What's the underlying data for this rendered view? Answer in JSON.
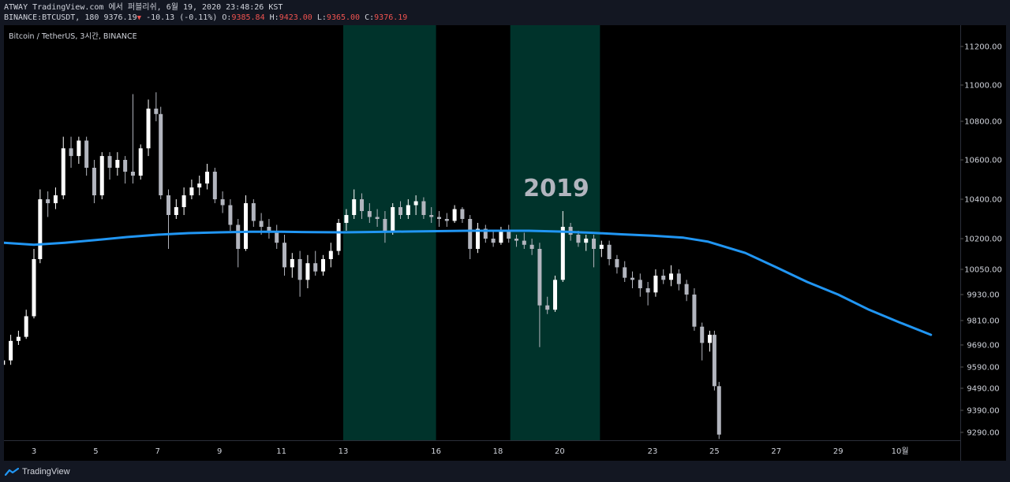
{
  "header": {
    "line1": "ATWAY TradingView.com 에서 퍼블리쉬, 6월 19, 2020 23:48:26 KST",
    "symbol": "BINANCE:BTCUSDT, 180",
    "last": "9376.19",
    "change_arrow": "▼",
    "change": "-10.13 (-0.11%)",
    "o_label": "O:",
    "o_value": "9385.84",
    "h_label": "H:",
    "h_value": "9423.00",
    "l_label": "L:",
    "l_value": "9365.00",
    "c_label": "C:",
    "c_value": "9376.19"
  },
  "footer": {
    "brand": "TradingView"
  },
  "colors": {
    "background": "#000000",
    "frame": "#131722",
    "candle_up": "#ffffff",
    "candle_down": "#b2b5be",
    "moving_average": "#2196f3",
    "highlight_zone": "#00332b",
    "annotation": "#b2b5be"
  },
  "chart_data": {
    "type": "candlestick",
    "title": "Bitcoin / TetherUS, 3시간, BINANCE",
    "annotation": "2019",
    "y_axis": {
      "side": "right",
      "ticks": [
        11200,
        11000,
        10800,
        10600,
        10400,
        10200,
        10050,
        9930,
        9810,
        9690,
        9590,
        9490,
        9390,
        9290
      ],
      "labels": [
        "11200.00",
        "11000.00",
        "10800.00",
        "10600.00",
        "10400.00",
        "10200.00",
        "10050.00",
        "9930.00",
        "9810.00",
        "9690.00",
        "9590.00",
        "9490.00",
        "9390.00",
        "9290.00"
      ],
      "scale": "log"
    },
    "x_axis": {
      "ticks": [
        3,
        5,
        7,
        9,
        11,
        13,
        16,
        18,
        20,
        23,
        25,
        27,
        29,
        31
      ],
      "labels": [
        "3",
        "5",
        "7",
        "9",
        "11",
        "13",
        "16",
        "18",
        "20",
        "23",
        "25",
        "27",
        "29",
        "10월"
      ]
    },
    "highlight_zones": [
      [
        13.0,
        16.0
      ],
      [
        18.4,
        21.3
      ]
    ],
    "moving_average": {
      "x": [
        2.0,
        3.0,
        4.0,
        5.0,
        6.0,
        7.0,
        8.0,
        9.0,
        10.0,
        11.0,
        12.0,
        13.0,
        14.0,
        15.0,
        16.0,
        17.0,
        18.0,
        19.0,
        20.0,
        21.0,
        22.0,
        23.0,
        24.0,
        24.8,
        26.0,
        27.0,
        28.0,
        29.0,
        30.0,
        31.0,
        32.0
      ],
      "y": [
        10180,
        10170,
        10180,
        10193,
        10208,
        10220,
        10228,
        10232,
        10235,
        10235,
        10233,
        10232,
        10234,
        10236,
        10238,
        10240,
        10240,
        10240,
        10236,
        10230,
        10222,
        10215,
        10205,
        10185,
        10130,
        10060,
        9990,
        9930,
        9860,
        9800,
        9740
      ]
    },
    "candles": [
      {
        "x": 2.0,
        "o": 9600,
        "h": 9650,
        "l": 9580,
        "c": 9620
      },
      {
        "x": 2.25,
        "o": 9620,
        "h": 9740,
        "l": 9600,
        "c": 9710
      },
      {
        "x": 2.5,
        "o": 9710,
        "h": 9760,
        "l": 9690,
        "c": 9730
      },
      {
        "x": 2.75,
        "o": 9730,
        "h": 9860,
        "l": 9720,
        "c": 9830
      },
      {
        "x": 3.0,
        "o": 9830,
        "h": 10150,
        "l": 9820,
        "c": 10100
      },
      {
        "x": 3.2,
        "o": 10100,
        "h": 10450,
        "l": 10080,
        "c": 10400
      },
      {
        "x": 3.45,
        "o": 10400,
        "h": 10440,
        "l": 10310,
        "c": 10380
      },
      {
        "x": 3.7,
        "o": 10380,
        "h": 10460,
        "l": 10350,
        "c": 10420
      },
      {
        "x": 3.95,
        "o": 10420,
        "h": 10720,
        "l": 10400,
        "c": 10660
      },
      {
        "x": 4.2,
        "o": 10660,
        "h": 10720,
        "l": 10560,
        "c": 10620
      },
      {
        "x": 4.45,
        "o": 10620,
        "h": 10720,
        "l": 10580,
        "c": 10700
      },
      {
        "x": 4.7,
        "o": 10700,
        "h": 10720,
        "l": 10520,
        "c": 10560
      },
      {
        "x": 4.95,
        "o": 10560,
        "h": 10600,
        "l": 10380,
        "c": 10420
      },
      {
        "x": 5.2,
        "o": 10420,
        "h": 10640,
        "l": 10400,
        "c": 10620
      },
      {
        "x": 5.45,
        "o": 10620,
        "h": 10640,
        "l": 10500,
        "c": 10560
      },
      {
        "x": 5.7,
        "o": 10560,
        "h": 10640,
        "l": 10520,
        "c": 10600
      },
      {
        "x": 5.95,
        "o": 10600,
        "h": 10620,
        "l": 10480,
        "c": 10540
      },
      {
        "x": 6.2,
        "o": 10540,
        "h": 10950,
        "l": 10480,
        "c": 10520
      },
      {
        "x": 6.45,
        "o": 10520,
        "h": 10680,
        "l": 10500,
        "c": 10660
      },
      {
        "x": 6.7,
        "o": 10660,
        "h": 10920,
        "l": 10620,
        "c": 10870
      },
      {
        "x": 6.95,
        "o": 10870,
        "h": 10960,
        "l": 10800,
        "c": 10840
      },
      {
        "x": 7.1,
        "o": 10840,
        "h": 10880,
        "l": 10400,
        "c": 10420
      },
      {
        "x": 7.35,
        "o": 10420,
        "h": 10450,
        "l": 10150,
        "c": 10320
      },
      {
        "x": 7.6,
        "o": 10320,
        "h": 10400,
        "l": 10300,
        "c": 10360
      },
      {
        "x": 7.85,
        "o": 10360,
        "h": 10460,
        "l": 10320,
        "c": 10420
      },
      {
        "x": 8.1,
        "o": 10420,
        "h": 10500,
        "l": 10400,
        "c": 10460
      },
      {
        "x": 8.35,
        "o": 10460,
        "h": 10520,
        "l": 10420,
        "c": 10480
      },
      {
        "x": 8.6,
        "o": 10480,
        "h": 10580,
        "l": 10450,
        "c": 10540
      },
      {
        "x": 8.85,
        "o": 10540,
        "h": 10560,
        "l": 10380,
        "c": 10400
      },
      {
        "x": 9.1,
        "o": 10400,
        "h": 10440,
        "l": 10330,
        "c": 10370
      },
      {
        "x": 9.35,
        "o": 10370,
        "h": 10400,
        "l": 10240,
        "c": 10270
      },
      {
        "x": 9.6,
        "o": 10270,
        "h": 10300,
        "l": 10060,
        "c": 10150
      },
      {
        "x": 9.85,
        "o": 10150,
        "h": 10420,
        "l": 10140,
        "c": 10380
      },
      {
        "x": 10.1,
        "o": 10380,
        "h": 10400,
        "l": 10260,
        "c": 10290
      },
      {
        "x": 10.35,
        "o": 10290,
        "h": 10330,
        "l": 10220,
        "c": 10260
      },
      {
        "x": 10.6,
        "o": 10260,
        "h": 10300,
        "l": 10200,
        "c": 10230
      },
      {
        "x": 10.85,
        "o": 10230,
        "h": 10270,
        "l": 10150,
        "c": 10180
      },
      {
        "x": 11.1,
        "o": 10180,
        "h": 10220,
        "l": 10020,
        "c": 10060
      },
      {
        "x": 11.35,
        "o": 10060,
        "h": 10130,
        "l": 10010,
        "c": 10100
      },
      {
        "x": 11.6,
        "o": 10100,
        "h": 10140,
        "l": 9920,
        "c": 10000
      },
      {
        "x": 11.85,
        "o": 10000,
        "h": 10120,
        "l": 9960,
        "c": 10080
      },
      {
        "x": 12.1,
        "o": 10080,
        "h": 10140,
        "l": 10020,
        "c": 10040
      },
      {
        "x": 12.35,
        "o": 10040,
        "h": 10120,
        "l": 10020,
        "c": 10100
      },
      {
        "x": 12.6,
        "o": 10100,
        "h": 10180,
        "l": 10060,
        "c": 10140
      },
      {
        "x": 12.85,
        "o": 10140,
        "h": 10300,
        "l": 10120,
        "c": 10280
      },
      {
        "x": 13.1,
        "o": 10280,
        "h": 10350,
        "l": 10240,
        "c": 10320
      },
      {
        "x": 13.35,
        "o": 10320,
        "h": 10450,
        "l": 10300,
        "c": 10400
      },
      {
        "x": 13.6,
        "o": 10400,
        "h": 10430,
        "l": 10300,
        "c": 10340
      },
      {
        "x": 13.85,
        "o": 10340,
        "h": 10380,
        "l": 10280,
        "c": 10310
      },
      {
        "x": 14.1,
        "o": 10310,
        "h": 10350,
        "l": 10260,
        "c": 10300
      },
      {
        "x": 14.35,
        "o": 10300,
        "h": 10340,
        "l": 10180,
        "c": 10230
      },
      {
        "x": 14.6,
        "o": 10230,
        "h": 10380,
        "l": 10220,
        "c": 10360
      },
      {
        "x": 14.85,
        "o": 10360,
        "h": 10390,
        "l": 10300,
        "c": 10320
      },
      {
        "x": 15.1,
        "o": 10320,
        "h": 10400,
        "l": 10300,
        "c": 10370
      },
      {
        "x": 15.35,
        "o": 10370,
        "h": 10420,
        "l": 10320,
        "c": 10390
      },
      {
        "x": 15.6,
        "o": 10390,
        "h": 10410,
        "l": 10300,
        "c": 10320
      },
      {
        "x": 15.85,
        "o": 10320,
        "h": 10360,
        "l": 10280,
        "c": 10310
      },
      {
        "x": 16.1,
        "o": 10310,
        "h": 10340,
        "l": 10260,
        "c": 10300
      },
      {
        "x": 16.35,
        "o": 10300,
        "h": 10330,
        "l": 10260,
        "c": 10290
      },
      {
        "x": 16.6,
        "o": 10290,
        "h": 10370,
        "l": 10280,
        "c": 10350
      },
      {
        "x": 16.85,
        "o": 10350,
        "h": 10360,
        "l": 10280,
        "c": 10300
      },
      {
        "x": 17.1,
        "o": 10300,
        "h": 10320,
        "l": 10100,
        "c": 10150
      },
      {
        "x": 17.35,
        "o": 10150,
        "h": 10280,
        "l": 10130,
        "c": 10250
      },
      {
        "x": 17.6,
        "o": 10250,
        "h": 10270,
        "l": 10180,
        "c": 10200
      },
      {
        "x": 17.85,
        "o": 10200,
        "h": 10240,
        "l": 10160,
        "c": 10180
      },
      {
        "x": 18.1,
        "o": 10180,
        "h": 10260,
        "l": 10170,
        "c": 10240
      },
      {
        "x": 18.35,
        "o": 10240,
        "h": 10270,
        "l": 10180,
        "c": 10200
      },
      {
        "x": 18.6,
        "o": 10200,
        "h": 10220,
        "l": 10160,
        "c": 10190
      },
      {
        "x": 18.85,
        "o": 10190,
        "h": 10230,
        "l": 10150,
        "c": 10170
      },
      {
        "x": 19.1,
        "o": 10170,
        "h": 10200,
        "l": 10120,
        "c": 10150
      },
      {
        "x": 19.35,
        "o": 10150,
        "h": 10180,
        "l": 9680,
        "c": 9880
      },
      {
        "x": 19.6,
        "o": 9880,
        "h": 9920,
        "l": 9840,
        "c": 9860
      },
      {
        "x": 19.85,
        "o": 9860,
        "h": 10020,
        "l": 9850,
        "c": 10000
      },
      {
        "x": 20.1,
        "o": 10000,
        "h": 10340,
        "l": 9990,
        "c": 10260
      },
      {
        "x": 20.35,
        "o": 10260,
        "h": 10280,
        "l": 10190,
        "c": 10220
      },
      {
        "x": 20.6,
        "o": 10220,
        "h": 10240,
        "l": 10160,
        "c": 10180
      },
      {
        "x": 20.85,
        "o": 10180,
        "h": 10220,
        "l": 10140,
        "c": 10200
      },
      {
        "x": 21.1,
        "o": 10200,
        "h": 10220,
        "l": 10060,
        "c": 10150
      },
      {
        "x": 21.35,
        "o": 10150,
        "h": 10190,
        "l": 10110,
        "c": 10170
      },
      {
        "x": 21.6,
        "o": 10170,
        "h": 10190,
        "l": 10070,
        "c": 10100
      },
      {
        "x": 21.85,
        "o": 10100,
        "h": 10120,
        "l": 10030,
        "c": 10060
      },
      {
        "x": 22.1,
        "o": 10060,
        "h": 10090,
        "l": 9990,
        "c": 10010
      },
      {
        "x": 22.35,
        "o": 10010,
        "h": 10040,
        "l": 9960,
        "c": 10000
      },
      {
        "x": 22.6,
        "o": 10000,
        "h": 10030,
        "l": 9920,
        "c": 9960
      },
      {
        "x": 22.85,
        "o": 9960,
        "h": 9990,
        "l": 9880,
        "c": 9940
      },
      {
        "x": 23.1,
        "o": 9940,
        "h": 10050,
        "l": 9920,
        "c": 10020
      },
      {
        "x": 23.35,
        "o": 10020,
        "h": 10050,
        "l": 9980,
        "c": 10000
      },
      {
        "x": 23.6,
        "o": 10000,
        "h": 10070,
        "l": 9970,
        "c": 10030
      },
      {
        "x": 23.85,
        "o": 10030,
        "h": 10050,
        "l": 9950,
        "c": 9980
      },
      {
        "x": 24.1,
        "o": 9980,
        "h": 10000,
        "l": 9900,
        "c": 9930
      },
      {
        "x": 24.35,
        "o": 9930,
        "h": 9960,
        "l": 9760,
        "c": 9780
      },
      {
        "x": 24.6,
        "o": 9780,
        "h": 9800,
        "l": 9620,
        "c": 9700
      },
      {
        "x": 24.85,
        "o": 9700,
        "h": 9760,
        "l": 9660,
        "c": 9740
      },
      {
        "x": 25.0,
        "o": 9740,
        "h": 9760,
        "l": 9480,
        "c": 9500
      },
      {
        "x": 25.15,
        "o": 9500,
        "h": 9520,
        "l": 9260,
        "c": 9280
      }
    ]
  }
}
